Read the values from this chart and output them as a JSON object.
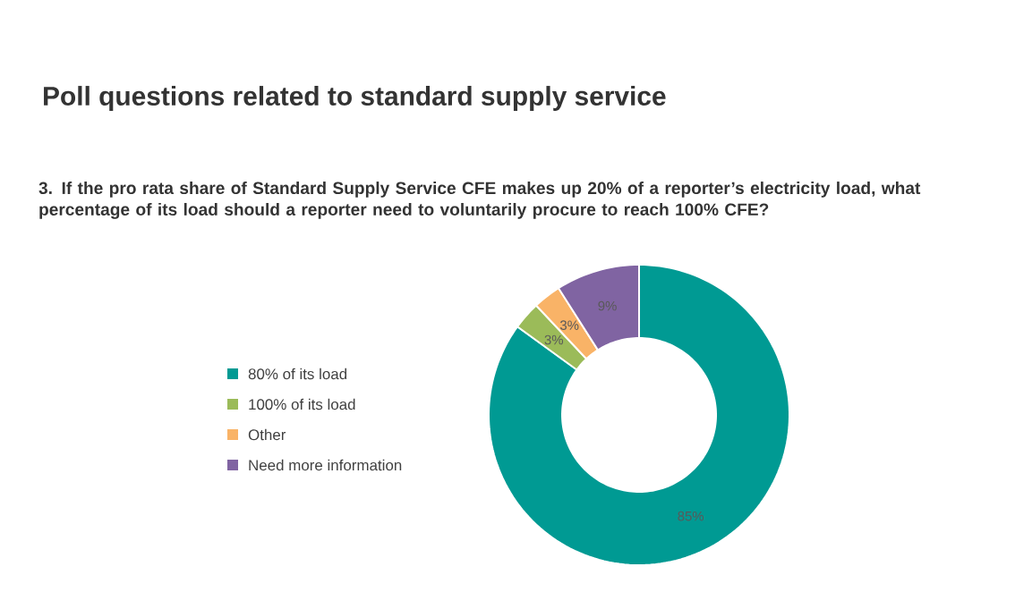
{
  "chart_data": {
    "type": "donut",
    "title": "Poll questions related to standard supply service",
    "subtitle": "3. If the pro rata share of Standard Supply Service CFE makes up 20% of a reporter’s electricity load, what percentage of its load should a reporter need to voluntarily procure to reach 100% CFE?",
    "categories": [
      "80% of its load",
      "100% of its load",
      "Other",
      "Need more information"
    ],
    "values": [
      85,
      3,
      3,
      9
    ],
    "colors": [
      "#009a93",
      "#9bbb59",
      "#f9b367",
      "#8064a2"
    ],
    "value_labels": [
      "85%",
      "3%",
      "3%",
      "9%"
    ],
    "legend": "left"
  }
}
